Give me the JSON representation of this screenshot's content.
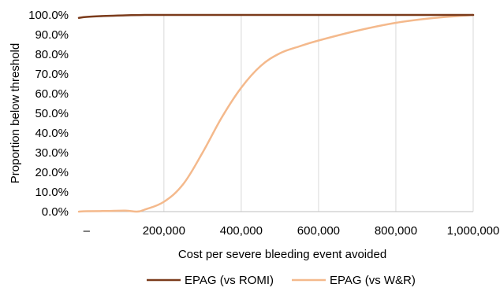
{
  "chart_data": {
    "type": "line",
    "title": "",
    "xlabel": "Cost per severe bleeding event avoided",
    "ylabel": "Proportion below threshold",
    "xlim": [
      -20000,
      1000000
    ],
    "ylim": [
      0,
      100
    ],
    "x_ticks": [
      0,
      200000,
      400000,
      600000,
      800000,
      1000000
    ],
    "x_tick_labels": [
      "–",
      "200,000",
      "400,000",
      "600,000",
      "800,000",
      "1,000,000"
    ],
    "y_ticks": [
      0,
      10,
      20,
      30,
      40,
      50,
      60,
      70,
      80,
      90,
      100
    ],
    "y_tick_labels": [
      "0.0%",
      "10.0%",
      "20.0%",
      "30.0%",
      "40.0%",
      "50.0%",
      "60.0%",
      "70.0%",
      "80.0%",
      "90.0%",
      "100.0%"
    ],
    "grid": "vertical",
    "legend_position": "bottom",
    "series": [
      {
        "name": "EPAG (vs ROMI)",
        "color": "#7b3b1b",
        "x": [
          -20000,
          0,
          50000,
          100000,
          150000,
          200000,
          300000,
          400000,
          500000,
          600000,
          700000,
          800000,
          900000,
          1000000
        ],
        "y": [
          98.5,
          99.0,
          99.5,
          99.8,
          100,
          100,
          100,
          100,
          100,
          100,
          100,
          100,
          100,
          100
        ]
      },
      {
        "name": "EPAG (vs W&R)",
        "color": "#f4b98c",
        "x": [
          -20000,
          0,
          50000,
          100000,
          130000,
          150000,
          200000,
          250000,
          300000,
          350000,
          400000,
          450000,
          500000,
          550000,
          600000,
          700000,
          800000,
          900000,
          1000000
        ],
        "y": [
          0,
          0.2,
          0.3,
          0.5,
          0,
          1.0,
          5.0,
          14.0,
          30.0,
          48.0,
          63.0,
          74.0,
          80.5,
          84.0,
          87.0,
          92.0,
          96.0,
          98.5,
          100
        ]
      }
    ]
  }
}
